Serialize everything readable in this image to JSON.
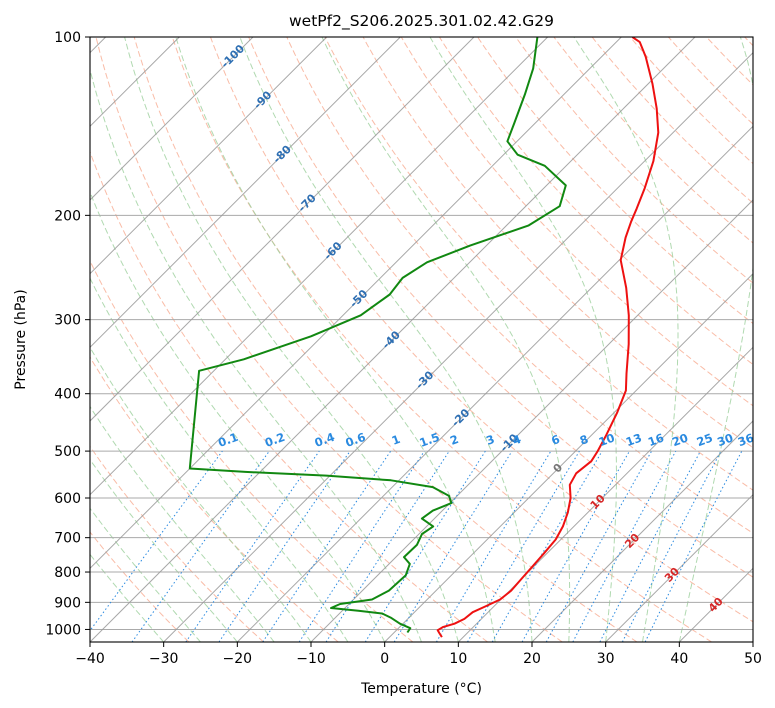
{
  "chart_data": {
    "type": "skew-t",
    "title": "wetPf2_S206.2025.301.02.42.G29",
    "xlabel": "Temperature (°C)",
    "ylabel": "Pressure (hPa)",
    "xlim": [
      -40,
      50
    ],
    "ylim": [
      1050,
      100
    ],
    "x_ticks": [
      -40,
      -30,
      -20,
      -10,
      0,
      10,
      20,
      30,
      40,
      50
    ],
    "x_tick_labels": [
      "−40",
      "−30",
      "−20",
      "−10",
      "0",
      "10",
      "20",
      "30",
      "40",
      "50"
    ],
    "y_ticks": [
      1000,
      900,
      800,
      700,
      600,
      500,
      400,
      300,
      200,
      100
    ],
    "y_tick_labels": [
      "1000",
      "900",
      "800",
      "700",
      "600",
      "500",
      "400",
      "300",
      "200",
      "100"
    ],
    "colors": {
      "temperature": "#ee1111",
      "dewpoint": "#118811",
      "isotherm": "#999999",
      "dry_adiabat": "#f7a58a",
      "moist_adiabat": "#9ccf9c",
      "mixing_ratio": "#2a8ae0",
      "temp_label": "#2e6fb3",
      "theta_label": "#d62728",
      "zero_label": "#777777",
      "mixing_label": "#2a8ae0"
    },
    "series": [
      {
        "name": "Temperature",
        "points": [
          [
            7.1,
            1030
          ],
          [
            6.2,
            1014
          ],
          [
            5.6,
            1003
          ],
          [
            5.9,
            990
          ],
          [
            7.0,
            978
          ],
          [
            7.7,
            960
          ],
          [
            7.9,
            935
          ],
          [
            8.8,
            915
          ],
          [
            9.9,
            890
          ],
          [
            10.2,
            860
          ],
          [
            10.0,
            820
          ],
          [
            9.8,
            780
          ],
          [
            9.6,
            745
          ],
          [
            9.3,
            705
          ],
          [
            8.5,
            670
          ],
          [
            7.3,
            635
          ],
          [
            5.7,
            600
          ],
          [
            3.8,
            570
          ],
          [
            3.1,
            545
          ],
          [
            3.5,
            520
          ],
          [
            3.0,
            500
          ],
          [
            2.0,
            470
          ],
          [
            0.4,
            430
          ],
          [
            -1.4,
            395
          ],
          [
            -3.6,
            370
          ],
          [
            -7.3,
            330
          ],
          [
            -11.2,
            295
          ],
          [
            -15.3,
            265
          ],
          [
            -19.8,
            238
          ],
          [
            -22.2,
            218
          ],
          [
            -23.6,
            205
          ],
          [
            -24.6,
            195
          ],
          [
            -26.3,
            180
          ],
          [
            -28.8,
            162
          ],
          [
            -32.0,
            145
          ],
          [
            -35.5,
            132
          ],
          [
            -39.4,
            120
          ],
          [
            -44.0,
            108
          ],
          [
            -46.8,
            102
          ],
          [
            -48.5,
            100
          ]
        ]
      },
      {
        "name": "Dewpoint",
        "points": [
          [
            1.8,
            1012
          ],
          [
            1.6,
            995
          ],
          [
            -0.4,
            978
          ],
          [
            -2.5,
            955
          ],
          [
            -4.2,
            940
          ],
          [
            -7.8,
            930
          ],
          [
            -11.9,
            920
          ],
          [
            -11.2,
            906
          ],
          [
            -7.5,
            890
          ],
          [
            -6.4,
            860
          ],
          [
            -6.2,
            810
          ],
          [
            -7.2,
            775
          ],
          [
            -8.9,
            755
          ],
          [
            -8.8,
            720
          ],
          [
            -9.6,
            690
          ],
          [
            -9.1,
            670
          ],
          [
            -11.7,
            650
          ],
          [
            -11.3,
            630
          ],
          [
            -9.8,
            612
          ],
          [
            -11.1,
            595
          ],
          [
            -14.5,
            575
          ],
          [
            -21.1,
            560
          ],
          [
            -30.5,
            550
          ],
          [
            -42.0,
            542
          ],
          [
            -50.0,
            535
          ],
          [
            -62.0,
            366
          ],
          [
            -57.5,
            350
          ],
          [
            -51.5,
            320
          ],
          [
            -47.6,
            295
          ],
          [
            -46.5,
            272
          ],
          [
            -47.0,
            255
          ],
          [
            -45.8,
            240
          ],
          [
            -42.2,
            225
          ],
          [
            -37.0,
            208
          ],
          [
            -35.4,
            193
          ],
          [
            -37.4,
            178
          ],
          [
            -42.9,
            165
          ],
          [
            -48.1,
            158
          ],
          [
            -51.3,
            150
          ],
          [
            -52.8,
            140
          ],
          [
            -55.3,
            125
          ],
          [
            -57.7,
            113
          ],
          [
            -61.4,
            100
          ]
        ]
      }
    ],
    "isotherm_labels": [
      {
        "t": -100,
        "p": 108,
        "text": "-100"
      },
      {
        "t": -90,
        "p": 128,
        "text": "-90"
      },
      {
        "t": -80,
        "p": 158,
        "text": "-80"
      },
      {
        "t": -70,
        "p": 191,
        "text": "-70"
      },
      {
        "t": -60,
        "p": 230,
        "text": "-60"
      },
      {
        "t": -50,
        "p": 277,
        "text": "-50"
      },
      {
        "t": -40,
        "p": 325,
        "text": "-40"
      },
      {
        "t": -30,
        "p": 380,
        "text": "-30"
      },
      {
        "t": -20,
        "p": 440,
        "text": "-20"
      },
      {
        "t": -10,
        "p": 485,
        "text": "-10"
      },
      {
        "t": 0,
        "p": 535,
        "text": "0"
      }
    ],
    "theta_labels": [
      {
        "t": 10,
        "p": 610,
        "text": "10"
      },
      {
        "t": 20,
        "p": 710,
        "text": "20"
      },
      {
        "t": 30,
        "p": 810,
        "text": "30"
      },
      {
        "t": 40,
        "p": 910,
        "text": "40"
      }
    ],
    "mixing_ratio_lines": [
      0.1,
      0.2,
      0.4,
      0.6,
      1,
      1.5,
      2,
      3,
      4,
      6,
      8,
      10,
      13,
      16,
      20,
      25,
      30,
      36
    ],
    "mixing_ratio_labels": [
      "0.1",
      "0.2",
      "0.4",
      "0.6",
      "1",
      "1.5",
      "2",
      "3",
      "4",
      "6",
      "8",
      "10",
      "13",
      "16",
      "20",
      "25",
      "30",
      "36"
    ]
  }
}
